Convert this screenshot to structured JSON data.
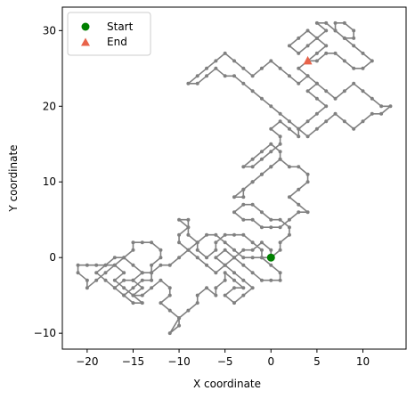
{
  "chart_data": {
    "type": "scatter",
    "title": "",
    "xlabel": "X coordinate",
    "ylabel": "Y coordinate",
    "xlim": [
      -22.7,
      14.7
    ],
    "ylim": [
      -12.1,
      33.1
    ],
    "xticks": [
      -20,
      -15,
      -10,
      -5,
      0,
      5,
      10
    ],
    "yticks": [
      -10,
      0,
      10,
      20,
      30
    ],
    "grid": false,
    "legend_position": "top-left",
    "path_color": "#808080",
    "series": [
      {
        "name": "Start",
        "marker": "circle",
        "color": "#008000",
        "points": [
          [
            0,
            0
          ]
        ]
      },
      {
        "name": "End",
        "marker": "triangle",
        "color": "#e8634a",
        "points": [
          [
            4,
            26
          ]
        ]
      }
    ],
    "walk_path": [
      [
        0,
        0
      ],
      [
        0,
        1
      ],
      [
        -1,
        2
      ],
      [
        -2,
        1
      ],
      [
        -3,
        1
      ],
      [
        -4,
        0
      ],
      [
        -5,
        -1
      ],
      [
        -6,
        -2
      ],
      [
        -7,
        -1
      ],
      [
        -8,
        0
      ],
      [
        -9,
        1
      ],
      [
        -10,
        2
      ],
      [
        -10,
        3
      ],
      [
        -9,
        4
      ],
      [
        -10,
        5
      ],
      [
        -9,
        5
      ],
      [
        -9,
        3
      ],
      [
        -8,
        2
      ],
      [
        -9,
        1
      ],
      [
        -10,
        0
      ],
      [
        -11,
        -1
      ],
      [
        -12,
        -1
      ],
      [
        -13,
        -2
      ],
      [
        -13,
        -3
      ],
      [
        -14,
        -3
      ],
      [
        -15,
        -4
      ],
      [
        -16,
        -5
      ],
      [
        -17,
        -4
      ],
      [
        -16,
        -3
      ],
      [
        -15,
        -3
      ],
      [
        -14,
        -4
      ],
      [
        -15,
        -5
      ],
      [
        -14,
        -6
      ],
      [
        -15,
        -6
      ],
      [
        -16,
        -5
      ],
      [
        -17,
        -4
      ],
      [
        -18,
        -3
      ],
      [
        -19,
        -2
      ],
      [
        -18,
        -1
      ],
      [
        -17,
        -1
      ],
      [
        -16,
        0
      ],
      [
        -15,
        -1
      ],
      [
        -14,
        -2
      ],
      [
        -15,
        -3
      ],
      [
        -14,
        -2
      ],
      [
        -13,
        -2
      ],
      [
        -13,
        -1
      ],
      [
        -12,
        0
      ],
      [
        -12,
        1
      ],
      [
        -13,
        2
      ],
      [
        -14,
        2
      ],
      [
        -15,
        2
      ],
      [
        -15,
        1
      ],
      [
        -16,
        0
      ],
      [
        -17,
        0
      ],
      [
        -18,
        -1
      ],
      [
        -19,
        -1
      ],
      [
        -20,
        -1
      ],
      [
        -21,
        -1
      ],
      [
        -21,
        -2
      ],
      [
        -20,
        -3
      ],
      [
        -20,
        -4
      ],
      [
        -19,
        -3
      ],
      [
        -18,
        -2
      ],
      [
        -17,
        -1
      ],
      [
        -16,
        -2
      ],
      [
        -17,
        -3
      ],
      [
        -16,
        -4
      ],
      [
        -15,
        -5
      ],
      [
        -14,
        -5
      ],
      [
        -13,
        -4
      ],
      [
        -12,
        -3
      ],
      [
        -11,
        -4
      ],
      [
        -11,
        -5
      ],
      [
        -12,
        -6
      ],
      [
        -11,
        -7
      ],
      [
        -10,
        -8
      ],
      [
        -10,
        -9
      ],
      [
        -11,
        -10
      ],
      [
        -10,
        -8
      ],
      [
        -9,
        -7
      ],
      [
        -8,
        -6
      ],
      [
        -8,
        -5
      ],
      [
        -7,
        -4
      ],
      [
        -6,
        -5
      ],
      [
        -6,
        -4
      ],
      [
        -5,
        -3
      ],
      [
        -5,
        -2
      ],
      [
        -4,
        -3
      ],
      [
        -3,
        -4
      ],
      [
        -4,
        -4
      ],
      [
        -5,
        -5
      ],
      [
        -4,
        -6
      ],
      [
        -3,
        -5
      ],
      [
        -2,
        -4
      ],
      [
        -3,
        -3
      ],
      [
        -4,
        -2
      ],
      [
        -5,
        -1
      ],
      [
        -6,
        0
      ],
      [
        -5,
        1
      ],
      [
        -4,
        0
      ],
      [
        -3,
        -1
      ],
      [
        -2,
        -2
      ],
      [
        -1,
        -3
      ],
      [
        0,
        -3
      ],
      [
        1,
        -3
      ],
      [
        1,
        -2
      ],
      [
        0,
        -1
      ],
      [
        -1,
        0
      ],
      [
        -1,
        1
      ],
      [
        -2,
        2
      ],
      [
        -3,
        3
      ],
      [
        -4,
        3
      ],
      [
        -5,
        3
      ],
      [
        -6,
        2
      ],
      [
        -6,
        1
      ],
      [
        -7,
        0
      ],
      [
        -8,
        1
      ],
      [
        -8,
        2
      ],
      [
        -7,
        3
      ],
      [
        -6,
        3
      ],
      [
        -5,
        2
      ],
      [
        -4,
        1
      ],
      [
        -3,
        0
      ],
      [
        -2,
        0
      ],
      [
        -1,
        0
      ],
      [
        0,
        0
      ]
    ],
    "walk_path_upper": [
      [
        0,
        0
      ],
      [
        1,
        1
      ],
      [
        1,
        2
      ],
      [
        2,
        3
      ],
      [
        2,
        4
      ],
      [
        1,
        5
      ],
      [
        0,
        5
      ],
      [
        -1,
        6
      ],
      [
        -2,
        7
      ],
      [
        -3,
        7
      ],
      [
        -4,
        6
      ],
      [
        -3,
        5
      ],
      [
        -2,
        5
      ],
      [
        -1,
        4
      ],
      [
        0,
        4
      ],
      [
        1,
        4
      ],
      [
        2,
        5
      ],
      [
        3,
        6
      ],
      [
        4,
        6
      ],
      [
        3,
        7
      ],
      [
        2,
        8
      ],
      [
        3,
        9
      ],
      [
        4,
        10
      ],
      [
        4,
        11
      ],
      [
        3,
        12
      ],
      [
        2,
        12
      ],
      [
        1,
        13
      ],
      [
        0,
        12
      ],
      [
        -1,
        11
      ],
      [
        -2,
        10
      ],
      [
        -3,
        9
      ],
      [
        -3,
        8
      ],
      [
        -4,
        8
      ],
      [
        -3,
        9
      ],
      [
        -2,
        10
      ],
      [
        -1,
        11
      ],
      [
        0,
        12
      ],
      [
        1,
        13
      ],
      [
        1,
        14
      ],
      [
        0,
        15
      ],
      [
        -1,
        14
      ],
      [
        -2,
        13
      ],
      [
        -3,
        12
      ],
      [
        -2,
        12
      ],
      [
        -1,
        13
      ],
      [
        0,
        14
      ],
      [
        1,
        15
      ],
      [
        1,
        16
      ],
      [
        0,
        17
      ],
      [
        1,
        18
      ],
      [
        2,
        17
      ],
      [
        3,
        16
      ],
      [
        3,
        17
      ],
      [
        2,
        18
      ],
      [
        1,
        19
      ],
      [
        0,
        20
      ],
      [
        -1,
        21
      ],
      [
        -2,
        22
      ],
      [
        -3,
        23
      ],
      [
        -4,
        24
      ],
      [
        -5,
        24
      ],
      [
        -6,
        25
      ],
      [
        -7,
        24
      ],
      [
        -8,
        23
      ],
      [
        -9,
        23
      ],
      [
        -8,
        24
      ],
      [
        -7,
        25
      ],
      [
        -6,
        26
      ],
      [
        -5,
        27
      ],
      [
        -4,
        26
      ],
      [
        -3,
        25
      ],
      [
        -2,
        24
      ],
      [
        -1,
        25
      ],
      [
        0,
        26
      ],
      [
        1,
        25
      ],
      [
        2,
        24
      ],
      [
        3,
        23
      ],
      [
        4,
        24
      ],
      [
        5,
        23
      ],
      [
        6,
        22
      ],
      [
        7,
        21
      ],
      [
        8,
        22
      ],
      [
        9,
        23
      ],
      [
        10,
        22
      ],
      [
        11,
        21
      ],
      [
        12,
        20
      ],
      [
        13,
        20
      ],
      [
        12,
        19
      ],
      [
        11,
        19
      ],
      [
        10,
        18
      ],
      [
        9,
        17
      ],
      [
        8,
        18
      ],
      [
        7,
        19
      ],
      [
        6,
        18
      ],
      [
        5,
        17
      ],
      [
        4,
        16
      ],
      [
        3,
        17
      ],
      [
        4,
        18
      ],
      [
        5,
        19
      ],
      [
        6,
        20
      ],
      [
        5,
        21
      ],
      [
        4,
        22
      ],
      [
        5,
        23
      ],
      [
        4,
        24
      ],
      [
        3,
        25
      ],
      [
        4,
        26
      ]
    ],
    "walk_path_top": [
      [
        4,
        26
      ],
      [
        5,
        27
      ],
      [
        6,
        28
      ],
      [
        5,
        29
      ],
      [
        4,
        30
      ],
      [
        3,
        29
      ],
      [
        2,
        28
      ],
      [
        3,
        27
      ],
      [
        4,
        28
      ],
      [
        5,
        29
      ],
      [
        6,
        30
      ],
      [
        5,
        31
      ],
      [
        6,
        31
      ],
      [
        7,
        30
      ],
      [
        8,
        29
      ],
      [
        9,
        29
      ],
      [
        9,
        30
      ],
      [
        8,
        31
      ],
      [
        7,
        31
      ],
      [
        7,
        30
      ],
      [
        8,
        29
      ],
      [
        9,
        28
      ],
      [
        10,
        27
      ],
      [
        11,
        26
      ],
      [
        10,
        25
      ],
      [
        9,
        25
      ],
      [
        8,
        26
      ],
      [
        7,
        27
      ],
      [
        6,
        27
      ],
      [
        5,
        26
      ],
      [
        4,
        26
      ]
    ]
  }
}
